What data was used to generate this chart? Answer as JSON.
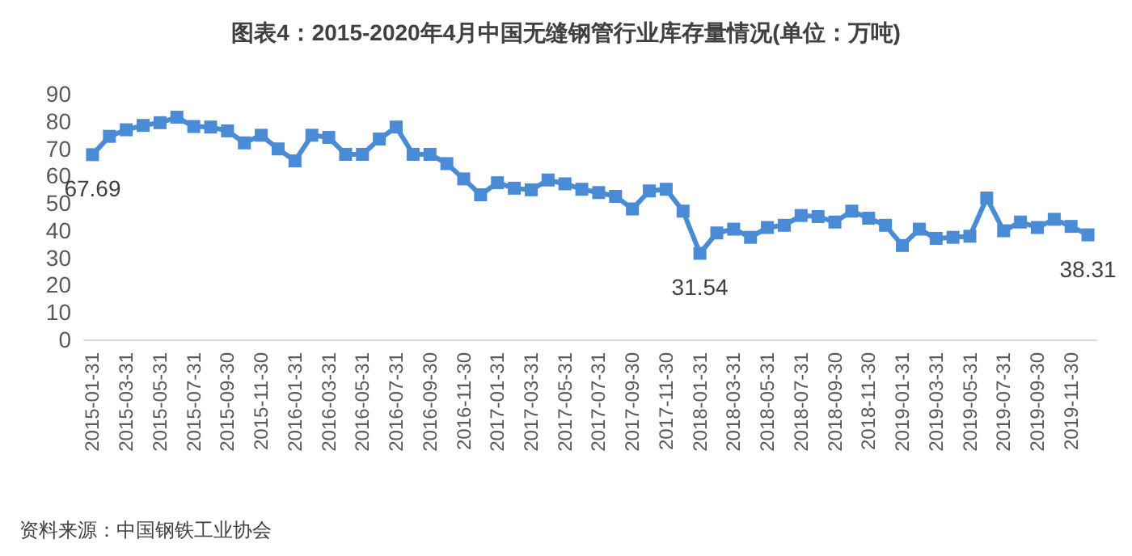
{
  "chart_data": {
    "type": "line",
    "title": "图表4：2015-2020年4月中国无缝钢管行业库存量情况(单位：万吨)",
    "annotations": [
      "资料来源：中国钢铁工业协会"
    ],
    "categories": [
      "2015-01-31",
      null,
      "2015-03-31",
      null,
      "2015-05-31",
      null,
      "2015-07-31",
      null,
      "2015-09-30",
      null,
      "2015-11-30",
      null,
      "2016-01-31",
      null,
      "2016-03-31",
      null,
      "2016-05-31",
      null,
      "2016-07-31",
      null,
      "2016-09-30",
      null,
      "2016-11-30",
      null,
      "2017-01-31",
      null,
      "2017-03-31",
      null,
      "2017-05-31",
      null,
      "2017-07-31",
      null,
      "2017-09-30",
      null,
      "2017-11-30",
      null,
      "2018-01-31",
      null,
      "2018-03-31",
      null,
      "2018-05-31",
      null,
      "2018-07-31",
      null,
      "2018-09-30",
      null,
      "2018-11-30",
      null,
      "2019-01-31",
      null,
      "2019-03-31",
      null,
      "2019-05-31",
      null,
      "2019-07-31",
      null,
      "2019-09-30",
      null,
      "2019-11-30",
      null
    ],
    "series": [
      {
        "color": "#4a8bd6",
        "values": [
          67.69,
          74.4,
          76.8,
          78.4,
          79.4,
          81.4,
          78,
          77.8,
          76.4,
          72,
          74.8,
          69.8,
          65.4,
          74.8,
          74,
          67.8,
          67.8,
          73.4,
          77.8,
          67.8,
          67.8,
          64.4,
          58.8,
          53,
          57.4,
          55.4,
          54.8,
          58.4,
          57,
          55,
          53.8,
          52.4,
          47.8,
          54.4,
          55,
          47,
          31.54,
          39,
          40.4,
          37.4,
          41,
          41.8,
          45.4,
          45,
          43,
          47,
          44.4,
          41.8,
          34.4,
          40.4,
          37,
          37.4,
          37.8,
          51.8,
          39.8,
          43,
          41,
          44,
          41.4,
          38.31
        ],
        "value_labels": [
          "67.69",
          null,
          null,
          null,
          null,
          null,
          null,
          null,
          null,
          null,
          null,
          null,
          null,
          null,
          null,
          null,
          null,
          null,
          null,
          null,
          null,
          null,
          null,
          null,
          null,
          null,
          null,
          null,
          null,
          null,
          null,
          null,
          null,
          null,
          null,
          null,
          "31.54",
          null,
          null,
          null,
          null,
          null,
          null,
          null,
          null,
          null,
          null,
          null,
          null,
          null,
          null,
          null,
          null,
          null,
          null,
          null,
          null,
          null,
          null,
          "38.31"
        ]
      }
    ],
    "ylim": [
      0,
      90
    ],
    "yticks": [
      0,
      10,
      20,
      30,
      40,
      50,
      60,
      70,
      80,
      90
    ],
    "grid": false,
    "marker": "square",
    "line_style": "solid"
  }
}
